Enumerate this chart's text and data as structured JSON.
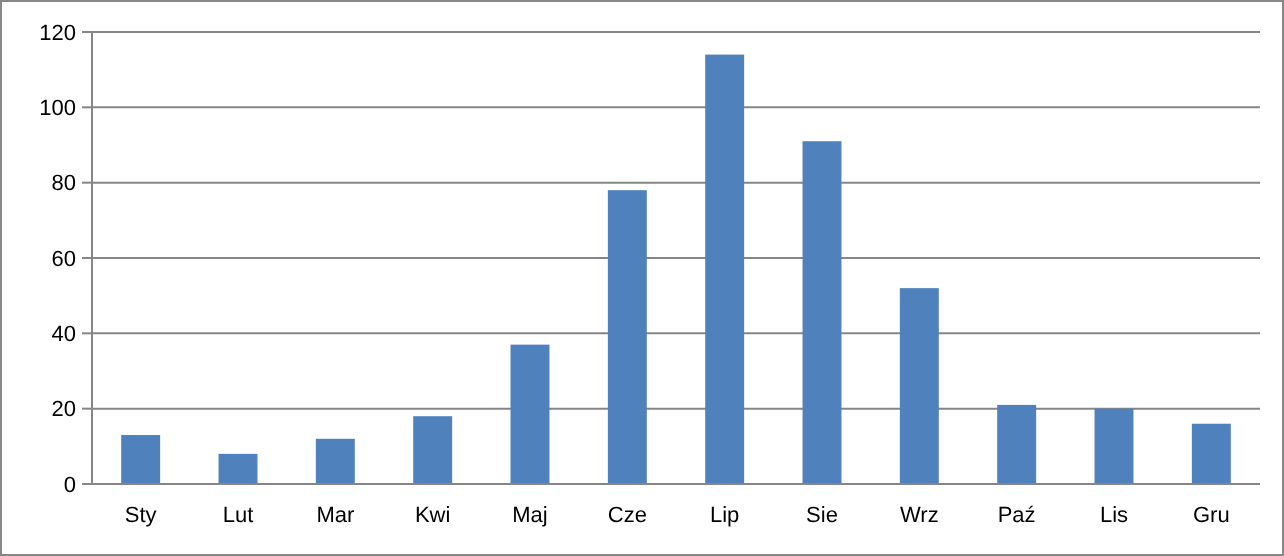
{
  "chart_data": {
    "type": "bar",
    "categories": [
      "Sty",
      "Lut",
      "Mar",
      "Kwi",
      "Maj",
      "Cze",
      "Lip",
      "Sie",
      "Wrz",
      "Paź",
      "Lis",
      "Gru"
    ],
    "values": [
      13,
      8,
      12,
      18,
      37,
      78,
      114,
      91,
      52,
      21,
      20,
      16
    ],
    "color": "#4f81bd",
    "ylim": [
      0,
      120
    ],
    "yticks": [
      0,
      20,
      40,
      60,
      80,
      100,
      120
    ],
    "grid": "y"
  }
}
